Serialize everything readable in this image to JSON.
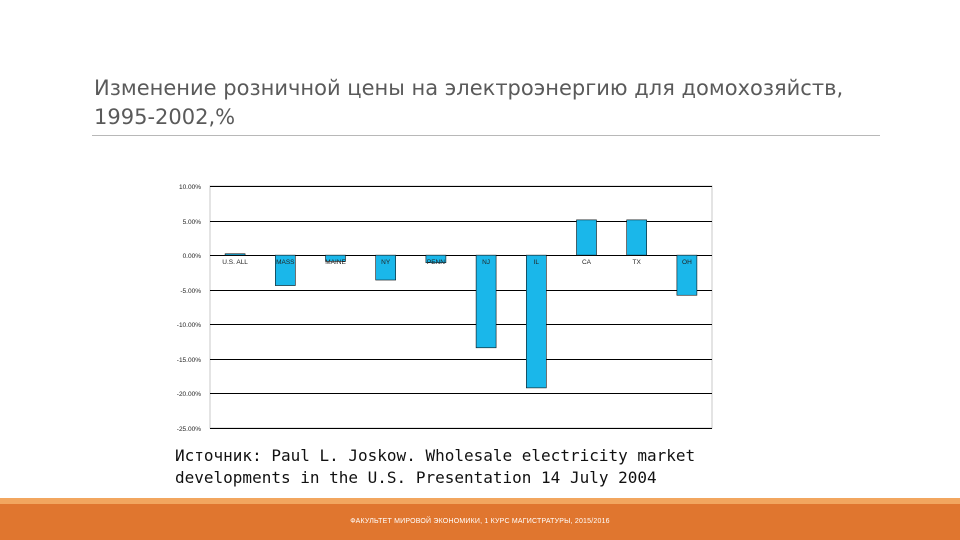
{
  "slide": {
    "title": "Изменение розничной цены на электроэнергию для домохозяйств, 1995-2002,%",
    "source": "Источник: Paul L. Joskow. Wholesale electricity market developments in the U.S. Presentation 14 July 2004",
    "footer": "ФАКУЛЬТЕТ МИРОВОЙ ЭКОНОМИКИ, 1 КУРС МАГИСТРАТУРЫ, 2015/2016"
  },
  "colors": {
    "bar_fill": "#1ab7ea",
    "bar_stroke": "#111111",
    "grid": "#000000",
    "footer": "#e0762f"
  },
  "chart_data": {
    "type": "bar",
    "categories": [
      "U.S. ALL",
      "MASS",
      "MAINE",
      "NY",
      "PENN",
      "NJ",
      "IL",
      "CA",
      "TX",
      "OH"
    ],
    "values": [
      0.2,
      -4.4,
      -0.9,
      -3.6,
      -1.1,
      -13.4,
      -19.2,
      5.1,
      5.1,
      -5.8
    ],
    "yticks": [
      10,
      5,
      0,
      -5,
      -10,
      -15,
      -20,
      -25
    ],
    "ytick_labels": [
      "10.00%",
      "5.00%",
      "0.00%",
      "-5.00%",
      "-10.00%",
      "-15.00%",
      "-20.00%",
      "-25.00%"
    ],
    "ylim": [
      -25,
      10
    ],
    "grid": true,
    "legend": "none"
  }
}
